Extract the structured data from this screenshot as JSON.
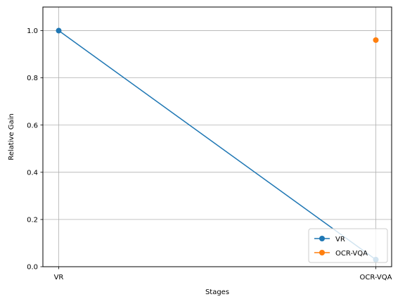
{
  "chart_data": {
    "type": "line",
    "categories": [
      "VR",
      "OCR-VQA"
    ],
    "series": [
      {
        "name": "VR",
        "values": [
          1.0,
          0.03
        ],
        "color": "#1f77b4",
        "marker": "circle"
      },
      {
        "name": "OCR-VQA",
        "values": [
          null,
          0.96
        ],
        "color": "#ff7f0e",
        "marker": "circle"
      }
    ],
    "xlabel": "Stages",
    "ylabel": "Relative Gain",
    "ylim": [
      0,
      1.1
    ],
    "yticks": [
      0.0,
      0.2,
      0.4,
      0.6,
      0.8,
      1.0
    ],
    "ytick_labels": [
      "0.0",
      "0.2",
      "0.4",
      "0.6",
      "0.8",
      "1.0"
    ],
    "grid": true,
    "legend_position": "lower-right"
  }
}
